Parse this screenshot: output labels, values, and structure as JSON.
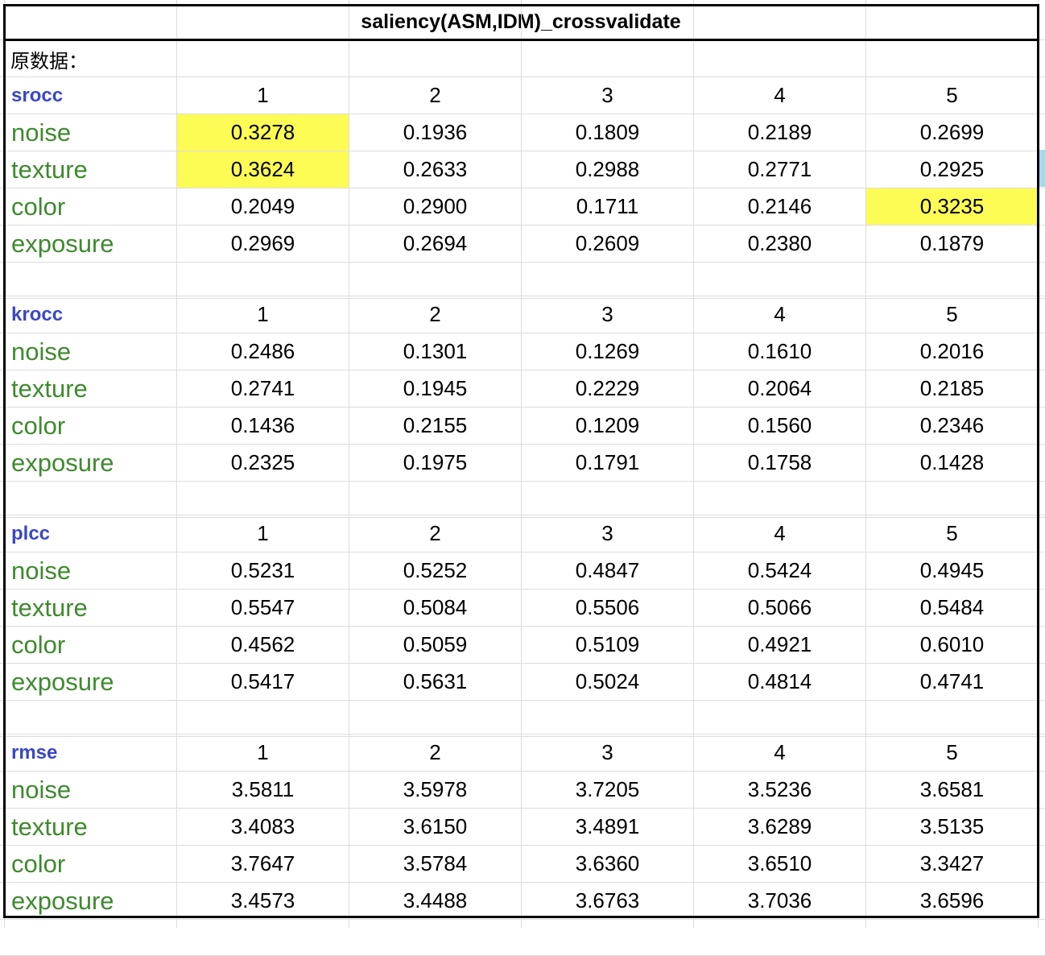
{
  "sheet": {
    "title": "saliency(ASM,IDM)_crossvalidate",
    "note": "原数据：",
    "highlight_color": "#fdfc55",
    "metric_color": "#3a47c4",
    "category_color": "#3e8a2e",
    "columns": [
      "1",
      "2",
      "3",
      "4",
      "5"
    ],
    "sections": [
      {
        "metric": "srocc",
        "rows": [
          {
            "label": "noise",
            "values": [
              "0.3278",
              "0.1936",
              "0.1809",
              "0.2189",
              "0.2699"
            ],
            "highlight": [
              0
            ]
          },
          {
            "label": "texture",
            "values": [
              "0.3624",
              "0.2633",
              "0.2988",
              "0.2771",
              "0.2925"
            ],
            "highlight": [
              0
            ]
          },
          {
            "label": "color",
            "values": [
              "0.2049",
              "0.2900",
              "0.1711",
              "0.2146",
              "0.3235"
            ],
            "highlight": [
              4
            ]
          },
          {
            "label": "exposure",
            "values": [
              "0.2969",
              "0.2694",
              "0.2609",
              "0.2380",
              "0.1879"
            ],
            "highlight": []
          }
        ]
      },
      {
        "metric": "krocc",
        "rows": [
          {
            "label": "noise",
            "values": [
              "0.2486",
              "0.1301",
              "0.1269",
              "0.1610",
              "0.2016"
            ],
            "highlight": []
          },
          {
            "label": "texture",
            "values": [
              "0.2741",
              "0.1945",
              "0.2229",
              "0.2064",
              "0.2185"
            ],
            "highlight": []
          },
          {
            "label": "color",
            "values": [
              "0.1436",
              "0.2155",
              "0.1209",
              "0.1560",
              "0.2346"
            ],
            "highlight": []
          },
          {
            "label": "exposure",
            "values": [
              "0.2325",
              "0.1975",
              "0.1791",
              "0.1758",
              "0.1428"
            ],
            "highlight": []
          }
        ]
      },
      {
        "metric": "plcc",
        "rows": [
          {
            "label": "noise",
            "values": [
              "0.5231",
              "0.5252",
              "0.4847",
              "0.5424",
              "0.4945"
            ],
            "highlight": []
          },
          {
            "label": "texture",
            "values": [
              "0.5547",
              "0.5084",
              "0.5506",
              "0.5066",
              "0.5484"
            ],
            "highlight": []
          },
          {
            "label": "color",
            "values": [
              "0.4562",
              "0.5059",
              "0.5109",
              "0.4921",
              "0.6010"
            ],
            "highlight": []
          },
          {
            "label": "exposure",
            "values": [
              "0.5417",
              "0.5631",
              "0.5024",
              "0.4814",
              "0.4741"
            ],
            "highlight": []
          }
        ]
      },
      {
        "metric": "rmse",
        "rows": [
          {
            "label": "noise",
            "values": [
              "3.5811",
              "3.5978",
              "3.7205",
              "3.5236",
              "3.6581"
            ],
            "highlight": []
          },
          {
            "label": "texture",
            "values": [
              "3.4083",
              "3.6150",
              "3.4891",
              "3.6289",
              "3.5135"
            ],
            "highlight": []
          },
          {
            "label": "color",
            "values": [
              "3.7647",
              "3.5784",
              "3.6360",
              "3.6510",
              "3.3427"
            ],
            "highlight": []
          },
          {
            "label": "exposure",
            "values": [
              "3.4573",
              "3.4488",
              "3.6763",
              "3.7036",
              "3.6596"
            ],
            "highlight": []
          }
        ]
      }
    ]
  }
}
